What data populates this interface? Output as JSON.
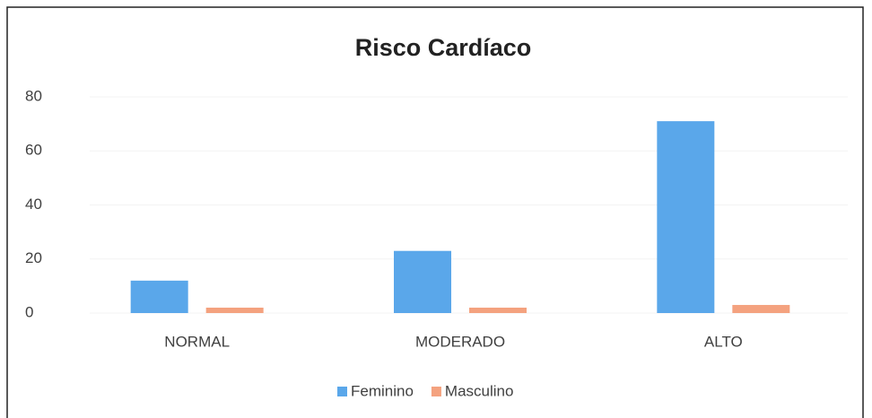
{
  "chart_data": {
    "type": "bar",
    "title": "Risco Cardíaco",
    "categories": [
      "NORMAL",
      "MODERADO",
      "ALTO"
    ],
    "series": [
      {
        "name": "Feminino",
        "color": "#5aa7ea",
        "values": [
          12,
          23,
          71
        ]
      },
      {
        "name": "Masculino",
        "color": "#f4a27f",
        "values": [
          2,
          2,
          3
        ]
      }
    ],
    "ylim": [
      0,
      80
    ],
    "yticks": [
      0,
      20,
      40,
      60,
      80
    ],
    "grid": true,
    "legend": "bottom"
  }
}
